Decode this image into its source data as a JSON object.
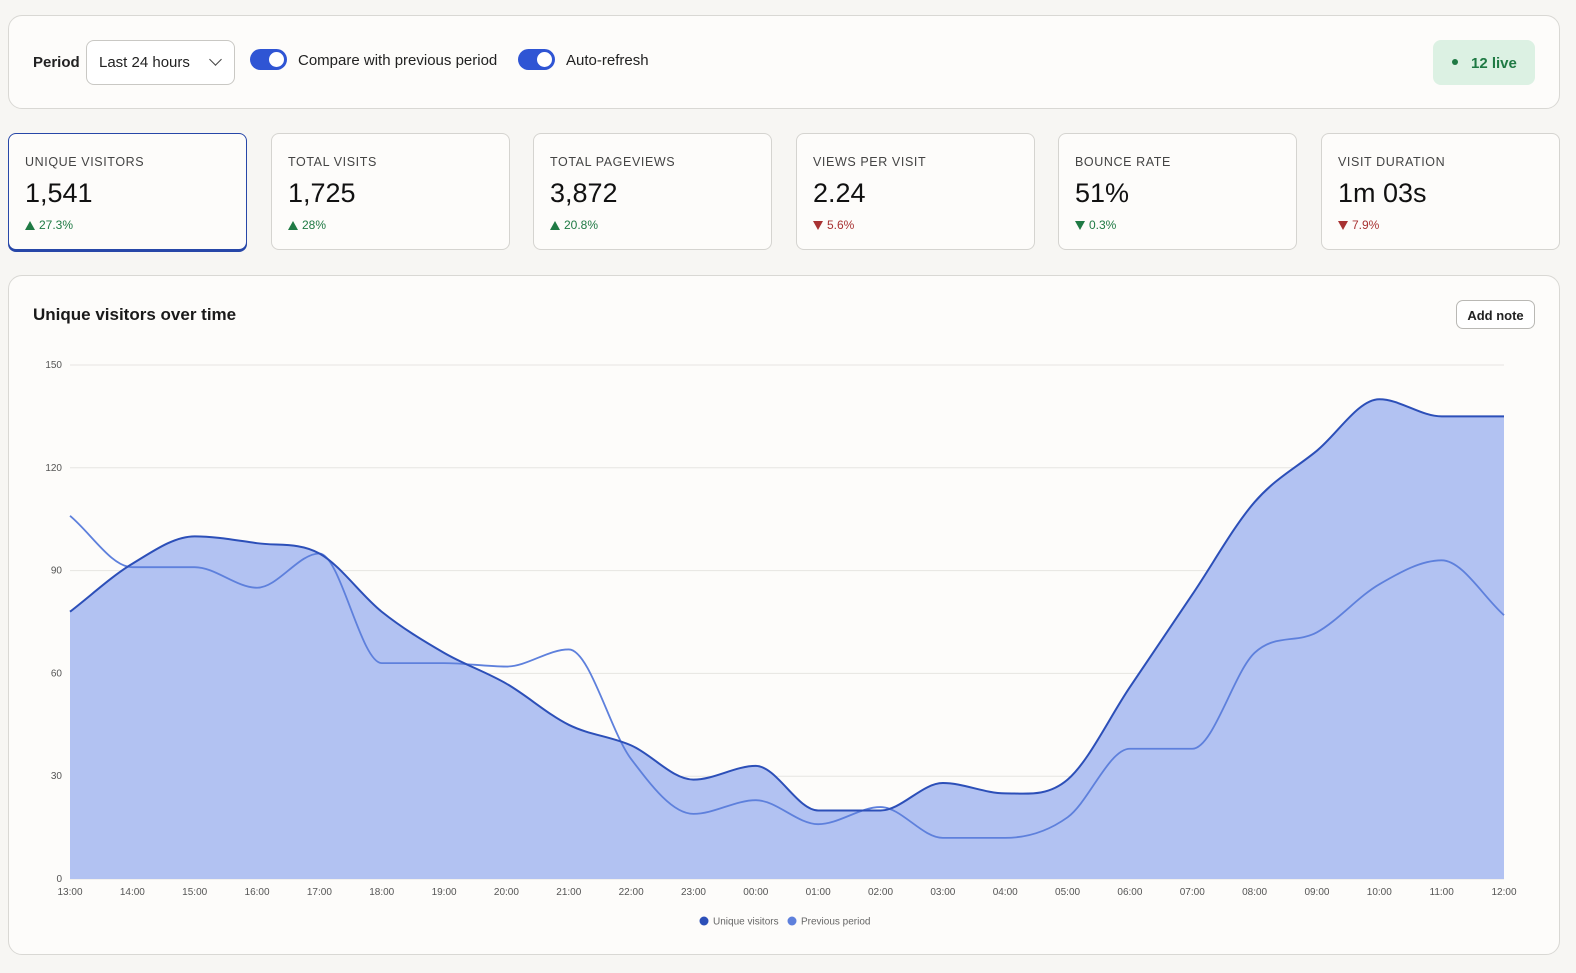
{
  "topbar": {
    "period_label": "Period",
    "period_value": "Last 24 hours",
    "compare_label": "Compare with previous period",
    "compare_on": true,
    "autorefresh_label": "Auto-refresh",
    "autorefresh_on": true,
    "live_text": "12 live"
  },
  "stats": [
    {
      "label": "UNIQUE VISITORS",
      "value": "1,541",
      "change": "27.3%",
      "direction": "up"
    },
    {
      "label": "TOTAL VISITS",
      "value": "1,725",
      "change": "28%",
      "direction": "up"
    },
    {
      "label": "TOTAL PAGEVIEWS",
      "value": "3,872",
      "change": "20.8%",
      "direction": "up"
    },
    {
      "label": "VIEWS PER VISIT",
      "value": "2.24",
      "change": "5.6%",
      "direction": "down"
    },
    {
      "label": "BOUNCE RATE",
      "value": "51%",
      "change": "0.3%",
      "direction": "down"
    },
    {
      "label": "VISIT DURATION",
      "value": "1m 03s",
      "change": "7.9%",
      "direction": "down"
    }
  ],
  "chart_panel": {
    "title": "Unique visitors over time",
    "add_note_label": "Add note"
  },
  "colors": {
    "accent": "#2f55d4",
    "series_line": "#2c4fb8",
    "series_fill": "#b2c2f2",
    "previous_line": "#5e80dc",
    "up": "#1f7a44",
    "down": "#a83232"
  },
  "chart_data": {
    "type": "area",
    "x": [
      "13:00",
      "14:00",
      "15:00",
      "16:00",
      "17:00",
      "18:00",
      "19:00",
      "20:00",
      "21:00",
      "22:00",
      "23:00",
      "00:00",
      "01:00",
      "02:00",
      "03:00",
      "04:00",
      "05:00",
      "06:00",
      "07:00",
      "08:00",
      "09:00",
      "10:00",
      "11:00",
      "12:00"
    ],
    "ylim": [
      0,
      150
    ],
    "yticks": [
      0,
      30,
      60,
      90,
      120,
      150
    ],
    "grid": true,
    "legend_position": "bottom",
    "series": [
      {
        "name": "Unique visitors",
        "values": [
          78,
          92,
          100,
          98,
          95,
          78,
          66,
          57,
          45,
          39,
          29,
          33,
          20,
          20,
          28,
          25,
          29,
          56,
          83,
          110,
          125,
          140,
          135,
          135
        ]
      },
      {
        "name": "Previous period",
        "values": [
          106,
          91,
          91,
          85,
          95,
          63,
          63,
          62,
          67,
          35,
          19,
          23,
          16,
          21,
          12,
          12,
          18,
          38,
          38,
          66,
          72,
          86,
          93,
          77
        ]
      }
    ]
  }
}
